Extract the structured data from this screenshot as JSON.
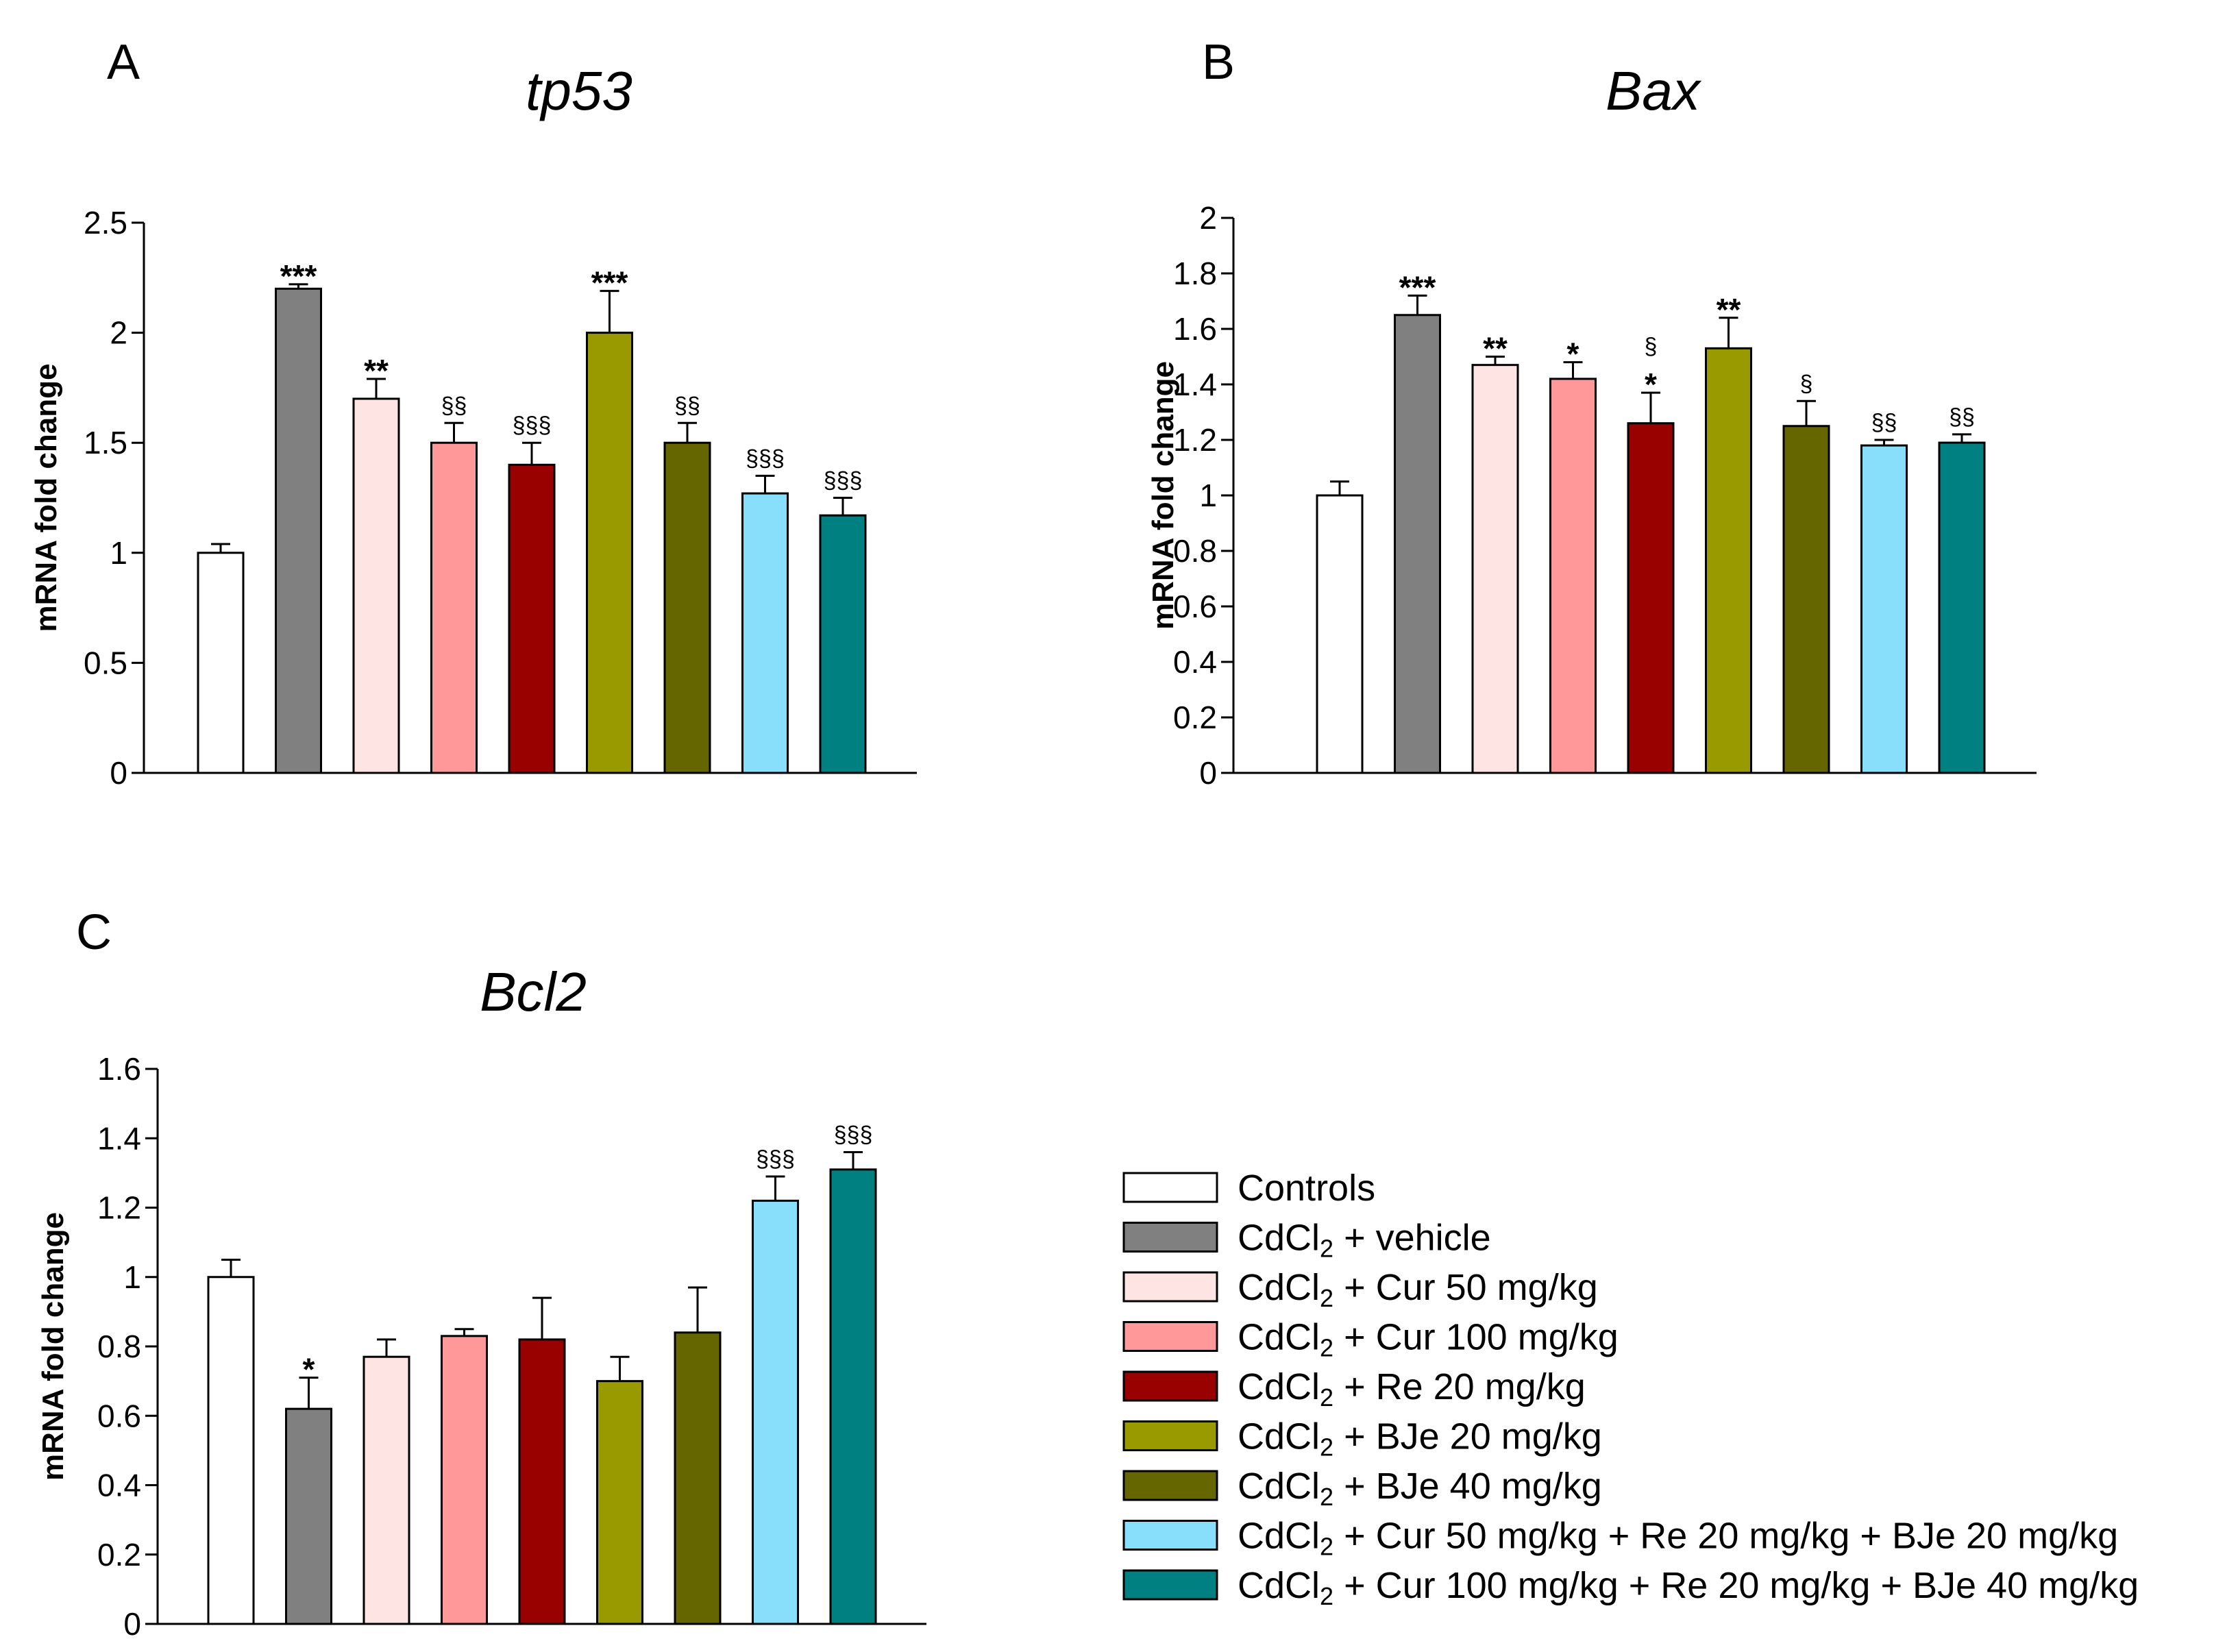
{
  "legend": {
    "items": [
      {
        "pre": "Controls",
        "sub": "",
        "post": "",
        "color": "#ffffff"
      },
      {
        "pre": "CdCl",
        "sub": "2",
        "post": " + vehicle",
        "color": "#808080"
      },
      {
        "pre": "CdCl",
        "sub": "2",
        "post": " + Cur 50 mg/kg",
        "color": "#ffe4e4"
      },
      {
        "pre": "CdCl",
        "sub": "2",
        "post": " + Cur 100 mg/kg",
        "color": "#ff9999"
      },
      {
        "pre": "CdCl",
        "sub": "2",
        "post": " + Re 20 mg/kg",
        "color": "#990000"
      },
      {
        "pre": "CdCl",
        "sub": "2",
        "post": " + BJe 20 mg/kg",
        "color": "#999900"
      },
      {
        "pre": "CdCl",
        "sub": "2",
        "post": " + BJe 40 mg/kg",
        "color": "#666600"
      },
      {
        "pre": "CdCl",
        "sub": "2",
        "post": " + Cur 50 mg/kg + Re 20 mg/kg + BJe 20 mg/kg",
        "color": "#87dffc"
      },
      {
        "pre": "CdCl",
        "sub": "2",
        "post": " + Cur 100 mg/kg + Re 20 mg/kg + BJe 40 mg/kg",
        "color": "#008080"
      }
    ]
  },
  "chart_data": [
    {
      "panel": "A",
      "type": "bar",
      "title": "tp53",
      "ylabel": "mRNA fold change",
      "xlabel": "",
      "ylim": [
        0,
        2.5
      ],
      "yticks": [
        "0",
        "0.5",
        "1",
        "1.5",
        "2",
        "2.5"
      ],
      "ytick_values": [
        0,
        0.5,
        1,
        1.5,
        2,
        2.5
      ],
      "values": [
        1.0,
        2.2,
        1.7,
        1.5,
        1.4,
        2.0,
        1.5,
        1.27,
        1.17
      ],
      "errors": [
        0.04,
        0.02,
        0.09,
        0.09,
        0.1,
        0.19,
        0.09,
        0.08,
        0.08
      ],
      "annotations": [
        [
          "",
          ""
        ],
        [
          "***",
          ""
        ],
        [
          "**",
          ""
        ],
        [
          "",
          "§§"
        ],
        [
          "",
          "§§§"
        ],
        [
          "***",
          ""
        ],
        [
          "",
          "§§"
        ],
        [
          "",
          "§§§"
        ],
        [
          "",
          "§§§"
        ]
      ]
    },
    {
      "panel": "B",
      "type": "bar",
      "title": "Bax",
      "ylabel": "mRNA fold change",
      "xlabel": "",
      "ylim": [
        0,
        2
      ],
      "yticks": [
        "0",
        "0.2",
        "0.4",
        "0.6",
        "0.8",
        "1",
        "1.2",
        "1.4",
        "1.6",
        "1.8",
        "2"
      ],
      "ytick_values": [
        0,
        0.2,
        0.4,
        0.6,
        0.8,
        1.0,
        1.2,
        1.4,
        1.6,
        1.8,
        2.0
      ],
      "values": [
        1.0,
        1.65,
        1.47,
        1.42,
        1.26,
        1.53,
        1.25,
        1.18,
        1.19
      ],
      "errors": [
        0.05,
        0.07,
        0.03,
        0.06,
        0.11,
        0.11,
        0.09,
        0.02,
        0.03
      ],
      "annotations": [
        [
          "",
          ""
        ],
        [
          "***",
          ""
        ],
        [
          "**",
          ""
        ],
        [
          "*",
          ""
        ],
        [
          "*",
          "§"
        ],
        [
          "**",
          ""
        ],
        [
          "",
          "§"
        ],
        [
          "",
          "§§"
        ],
        [
          "",
          "§§"
        ]
      ]
    },
    {
      "panel": "C",
      "type": "bar",
      "title": "Bcl2",
      "ylabel": "mRNA fold change",
      "xlabel": "",
      "ylim": [
        0,
        1.6
      ],
      "yticks": [
        "0",
        "0.2",
        "0.4",
        "0.6",
        "0.8",
        "1",
        "1.2",
        "1.4",
        "1.6"
      ],
      "ytick_values": [
        0,
        0.2,
        0.4,
        0.6,
        0.8,
        1.0,
        1.2,
        1.4,
        1.6
      ],
      "values": [
        1.0,
        0.62,
        0.77,
        0.83,
        0.82,
        0.7,
        0.84,
        1.22,
        1.31
      ],
      "errors": [
        0.05,
        0.09,
        0.05,
        0.02,
        0.12,
        0.07,
        0.13,
        0.07,
        0.05
      ],
      "annotations": [
        [
          "",
          ""
        ],
        [
          "*",
          ""
        ],
        [
          "",
          ""
        ],
        [
          "",
          ""
        ],
        [
          "",
          ""
        ],
        [
          "",
          ""
        ],
        [
          "",
          ""
        ],
        [
          "",
          "§§§"
        ],
        [
          "",
          "§§§"
        ]
      ]
    }
  ]
}
